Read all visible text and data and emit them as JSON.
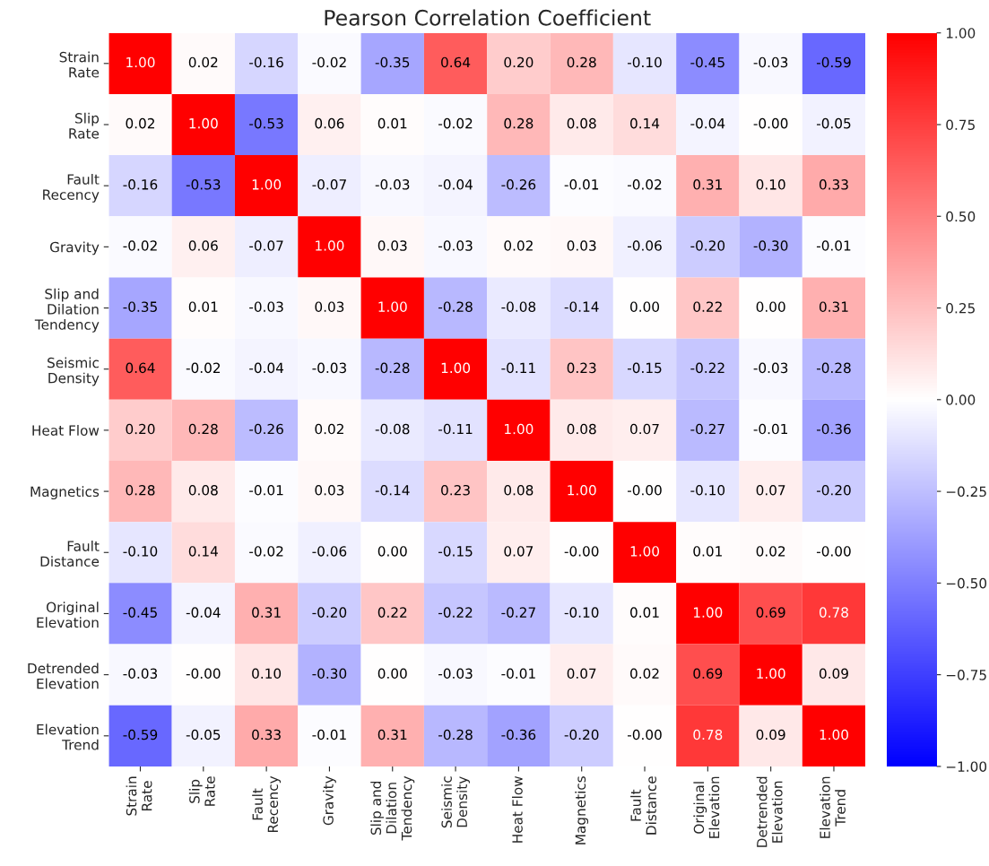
{
  "chart_data": {
    "type": "heatmap",
    "title": "Pearson Correlation Coefficient",
    "categories": [
      "Strain\nRate",
      "Slip\nRate",
      "Fault\nRecency",
      "Gravity",
      "Slip and\nDilation\nTendency",
      "Seismic\nDensity",
      "Heat Flow",
      "Magnetics",
      "Fault\nDistance",
      "Original\nElevation",
      "Detrended\nElevation",
      "Elevation\nTrend"
    ],
    "y_categories": [
      "Strain\nRate",
      "Slip\nRate",
      "Fault\nRecency",
      "Gravity",
      "Slip and\nDilation\nTendency",
      "Seismic\nDensity",
      "Heat Flow",
      "Magnetics",
      "Fault\nDistance",
      "Original\nElevation",
      "Detrended\nElevation",
      "Elevation\nTrend"
    ],
    "cells": [
      [
        1.0,
        0.02,
        -0.16,
        -0.02,
        -0.35,
        0.64,
        0.2,
        0.28,
        -0.1,
        -0.45,
        -0.03,
        -0.59
      ],
      [
        0.02,
        1.0,
        -0.53,
        0.06,
        0.01,
        -0.02,
        0.28,
        0.08,
        0.14,
        -0.04,
        0.0,
        -0.05
      ],
      [
        -0.16,
        -0.53,
        1.0,
        -0.07,
        -0.03,
        -0.04,
        -0.26,
        -0.01,
        -0.02,
        0.31,
        0.1,
        0.33
      ],
      [
        -0.02,
        0.06,
        -0.07,
        1.0,
        0.03,
        -0.03,
        0.02,
        0.03,
        -0.06,
        -0.2,
        -0.3,
        -0.01
      ],
      [
        -0.35,
        0.01,
        -0.03,
        0.03,
        1.0,
        -0.28,
        -0.08,
        -0.14,
        0.0,
        0.22,
        0.0,
        0.31
      ],
      [
        0.64,
        -0.02,
        -0.04,
        -0.03,
        -0.28,
        1.0,
        -0.11,
        0.23,
        -0.15,
        -0.22,
        -0.03,
        -0.28
      ],
      [
        0.2,
        0.28,
        -0.26,
        0.02,
        -0.08,
        -0.11,
        1.0,
        0.08,
        0.07,
        -0.27,
        -0.01,
        -0.36
      ],
      [
        0.28,
        0.08,
        -0.01,
        0.03,
        -0.14,
        0.23,
        0.08,
        1.0,
        0.0,
        -0.1,
        0.07,
        -0.2
      ],
      [
        -0.1,
        0.14,
        -0.02,
        -0.06,
        0.0,
        -0.15,
        0.07,
        0.0,
        1.0,
        0.01,
        0.02,
        0.0
      ],
      [
        -0.45,
        -0.04,
        0.31,
        -0.2,
        0.22,
        -0.22,
        -0.27,
        -0.1,
        0.01,
        1.0,
        0.69,
        0.78
      ],
      [
        -0.03,
        0.0,
        0.1,
        -0.3,
        0.0,
        -0.03,
        -0.01,
        0.07,
        0.02,
        0.69,
        1.0,
        0.09
      ],
      [
        -0.59,
        -0.05,
        0.33,
        -0.01,
        0.31,
        -0.28,
        -0.36,
        -0.2,
        0.0,
        0.78,
        0.09,
        1.0
      ]
    ],
    "cell_labels": [
      [
        "1.00",
        "0.02",
        "-0.16",
        "-0.02",
        "-0.35",
        "0.64",
        "0.20",
        "0.28",
        "-0.10",
        "-0.45",
        "-0.03",
        "-0.59"
      ],
      [
        "0.02",
        "1.00",
        "-0.53",
        "0.06",
        "0.01",
        "-0.02",
        "0.28",
        "0.08",
        "0.14",
        "-0.04",
        "-0.00",
        "-0.05"
      ],
      [
        "-0.16",
        "-0.53",
        "1.00",
        "-0.07",
        "-0.03",
        "-0.04",
        "-0.26",
        "-0.01",
        "-0.02",
        "0.31",
        "0.10",
        "0.33"
      ],
      [
        "-0.02",
        "0.06",
        "-0.07",
        "1.00",
        "0.03",
        "-0.03",
        "0.02",
        "0.03",
        "-0.06",
        "-0.20",
        "-0.30",
        "-0.01"
      ],
      [
        "-0.35",
        "0.01",
        "-0.03",
        "0.03",
        "1.00",
        "-0.28",
        "-0.08",
        "-0.14",
        "0.00",
        "0.22",
        "0.00",
        "0.31"
      ],
      [
        "0.64",
        "-0.02",
        "-0.04",
        "-0.03",
        "-0.28",
        "1.00",
        "-0.11",
        "0.23",
        "-0.15",
        "-0.22",
        "-0.03",
        "-0.28"
      ],
      [
        "0.20",
        "0.28",
        "-0.26",
        "0.02",
        "-0.08",
        "-0.11",
        "1.00",
        "0.08",
        "0.07",
        "-0.27",
        "-0.01",
        "-0.36"
      ],
      [
        "0.28",
        "0.08",
        "-0.01",
        "0.03",
        "-0.14",
        "0.23",
        "0.08",
        "1.00",
        "-0.00",
        "-0.10",
        "0.07",
        "-0.20"
      ],
      [
        "-0.10",
        "0.14",
        "-0.02",
        "-0.06",
        "0.00",
        "-0.15",
        "0.07",
        "-0.00",
        "1.00",
        "0.01",
        "0.02",
        "-0.00"
      ],
      [
        "-0.45",
        "-0.04",
        "0.31",
        "-0.20",
        "0.22",
        "-0.22",
        "-0.27",
        "-0.10",
        "0.01",
        "1.00",
        "0.69",
        "0.78"
      ],
      [
        "-0.03",
        "-0.00",
        "0.10",
        "-0.30",
        "0.00",
        "-0.03",
        "-0.01",
        "0.07",
        "0.02",
        "0.69",
        "1.00",
        "0.09"
      ],
      [
        "-0.59",
        "-0.05",
        "0.33",
        "-0.01",
        "0.31",
        "-0.28",
        "-0.36",
        "-0.20",
        "-0.00",
        "0.78",
        "0.09",
        "1.00"
      ]
    ],
    "clim": [
      -1,
      1
    ],
    "cticks": [
      {
        "value": -1,
        "label": "−1.00"
      },
      {
        "value": -0.75,
        "label": "−0.75"
      },
      {
        "value": -0.5,
        "label": "−0.50"
      },
      {
        "value": -0.25,
        "label": "−0.25"
      },
      {
        "value": 0,
        "label": "0.00"
      },
      {
        "value": 0.25,
        "label": "0.25"
      },
      {
        "value": 0.5,
        "label": "0.50"
      },
      {
        "value": 0.75,
        "label": "0.75"
      },
      {
        "value": 1,
        "label": "1.00"
      }
    ]
  }
}
